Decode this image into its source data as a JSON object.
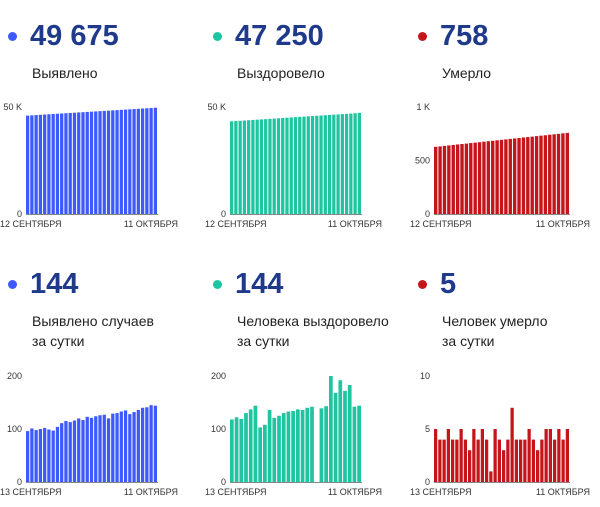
{
  "panels": [
    {
      "value": "49 675",
      "label1": "Выявлено",
      "label2": ""
    },
    {
      "value": "47 250",
      "label1": "Выздоровело",
      "label2": ""
    },
    {
      "value": "758",
      "label1": "Умерло",
      "label2": ""
    },
    {
      "value": "144",
      "label1": "Выявлено случаев",
      "label2": "за сутки"
    },
    {
      "value": "144",
      "label1": "Человека выздоровело",
      "label2": "за сутки"
    },
    {
      "value": "5",
      "label1": "Человек умерло",
      "label2": "за сутки"
    }
  ],
  "chart_data": [
    {
      "type": "bar",
      "color": "#3d5afe",
      "x_labels": [
        "12 СЕНТЯБРЯ",
        "11 ОКТЯБРЯ"
      ],
      "y_ticks": [
        0,
        50000
      ],
      "y_tick_labels": [
        "0",
        "50 K"
      ],
      "ylim": [
        0,
        50000
      ],
      "values": [
        45970,
        46100,
        46225,
        46350,
        46480,
        46600,
        46725,
        46850,
        46975,
        47100,
        47220,
        47340,
        47460,
        47580,
        47700,
        47820,
        47940,
        48060,
        48180,
        48300,
        48420,
        48545,
        48670,
        48795,
        48920,
        49045,
        49170,
        49295,
        49420,
        49545,
        49675
      ]
    },
    {
      "type": "bar",
      "color": "#1fc4a0",
      "x_labels": [
        "12 СЕНТЯБРЯ",
        "11 ОКТЯБРЯ"
      ],
      "y_ticks": [
        0,
        50000
      ],
      "y_tick_labels": [
        "0",
        "50 K"
      ],
      "ylim": [
        0,
        50000
      ],
      "values": [
        43300,
        43430,
        43560,
        43690,
        43820,
        43950,
        44080,
        44210,
        44340,
        44470,
        44600,
        44730,
        44860,
        44990,
        45120,
        45250,
        45380,
        45510,
        45640,
        45770,
        45900,
        46030,
        46160,
        46290,
        46420,
        46550,
        46680,
        46810,
        46940,
        47070,
        47250
      ]
    },
    {
      "type": "bar",
      "color": "#c6151a",
      "x_labels": [
        "12 СЕНТЯБРЯ",
        "11 ОКТЯБРЯ"
      ],
      "y_ticks": [
        0,
        500,
        1000
      ],
      "y_tick_labels": [
        "0",
        "500",
        "1 K"
      ],
      "ylim": [
        0,
        1000
      ],
      "values": [
        628,
        632,
        637,
        641,
        645,
        650,
        654,
        658,
        663,
        667,
        671,
        676,
        680,
        684,
        689,
        693,
        697,
        702,
        706,
        710,
        715,
        719,
        723,
        728,
        732,
        736,
        741,
        745,
        749,
        754,
        758
      ]
    },
    {
      "type": "bar",
      "color": "#3d5afe",
      "x_labels": [
        "13 СЕНТЯБРЯ",
        "11 ОКТЯБРЯ"
      ],
      "y_ticks": [
        0,
        100,
        200
      ],
      "y_tick_labels": [
        "0",
        "100",
        "200"
      ],
      "ylim": [
        0,
        200
      ],
      "values": [
        96,
        101,
        98,
        100,
        102,
        99,
        97,
        104,
        111,
        115,
        113,
        116,
        120,
        117,
        123,
        121,
        124,
        126,
        127,
        120,
        129,
        130,
        133,
        135,
        128,
        132,
        136,
        140,
        141,
        145,
        144
      ]
    },
    {
      "type": "bar",
      "color": "#1fc4a0",
      "x_labels": [
        "13 СЕНТЯБРЯ",
        "11 ОКТЯБРЯ"
      ],
      "y_ticks": [
        0,
        100,
        200
      ],
      "y_tick_labels": [
        "0",
        "100",
        "200"
      ],
      "ylim": [
        0,
        200
      ],
      "values": [
        118,
        122,
        119,
        130,
        137,
        144,
        103,
        108,
        136,
        121,
        125,
        130,
        133,
        134,
        137,
        136,
        140,
        142,
        null,
        139,
        143,
        200,
        168,
        192,
        172,
        183,
        142,
        144
      ]
    },
    {
      "type": "bar",
      "color": "#c6151a",
      "x_labels": [
        "13 СЕНТЯБРЯ",
        "11 ОКТЯБРЯ"
      ],
      "y_ticks": [
        0,
        5,
        10
      ],
      "y_tick_labels": [
        "0",
        "5",
        "10"
      ],
      "ylim": [
        0,
        10
      ],
      "values": [
        5,
        4,
        4,
        5,
        4,
        4,
        5,
        4,
        3,
        5,
        4,
        5,
        4,
        1,
        5,
        4,
        3,
        4,
        7,
        4,
        4,
        4,
        5,
        4,
        3,
        4,
        5,
        5,
        4,
        5,
        4,
        5
      ]
    }
  ]
}
